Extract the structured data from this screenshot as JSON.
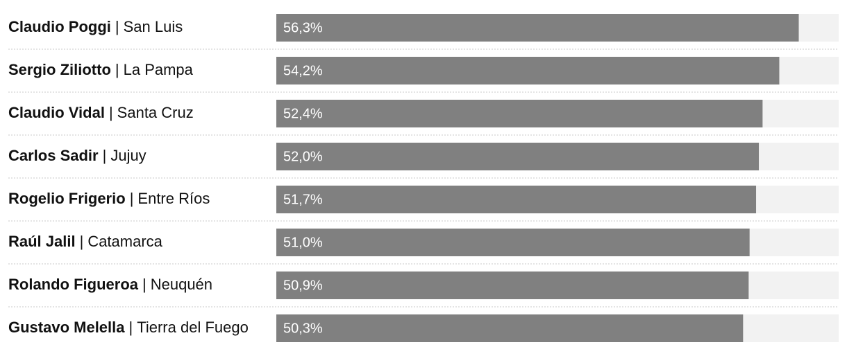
{
  "chart_data": {
    "type": "bar",
    "categories": [
      "Claudio Poggi",
      "Sergio Ziliotto",
      "Claudio Vidal",
      "Carlos Sadir",
      "Rogelio Frigerio",
      "Raúl Jalil",
      "Rolando Figueroa",
      "Gustavo Melella"
    ],
    "regions": [
      "San Luis",
      "La Pampa",
      "Santa Cruz",
      "Jujuy",
      "Entre Ríos",
      "Catamarca",
      "Neuquén",
      "Tierra del Fuego"
    ],
    "separator": "|",
    "values": [
      56.3,
      54.2,
      52.4,
      52.0,
      51.7,
      51.0,
      50.9,
      50.3
    ],
    "value_labels": [
      "56,3%",
      "54,2%",
      "52,4%",
      "52,0%",
      "51,7%",
      "51,0%",
      "50,9%",
      "50,3%"
    ],
    "xlim": [
      0,
      60.6
    ],
    "color": "#808080",
    "track_color": "#f2f2f2"
  }
}
